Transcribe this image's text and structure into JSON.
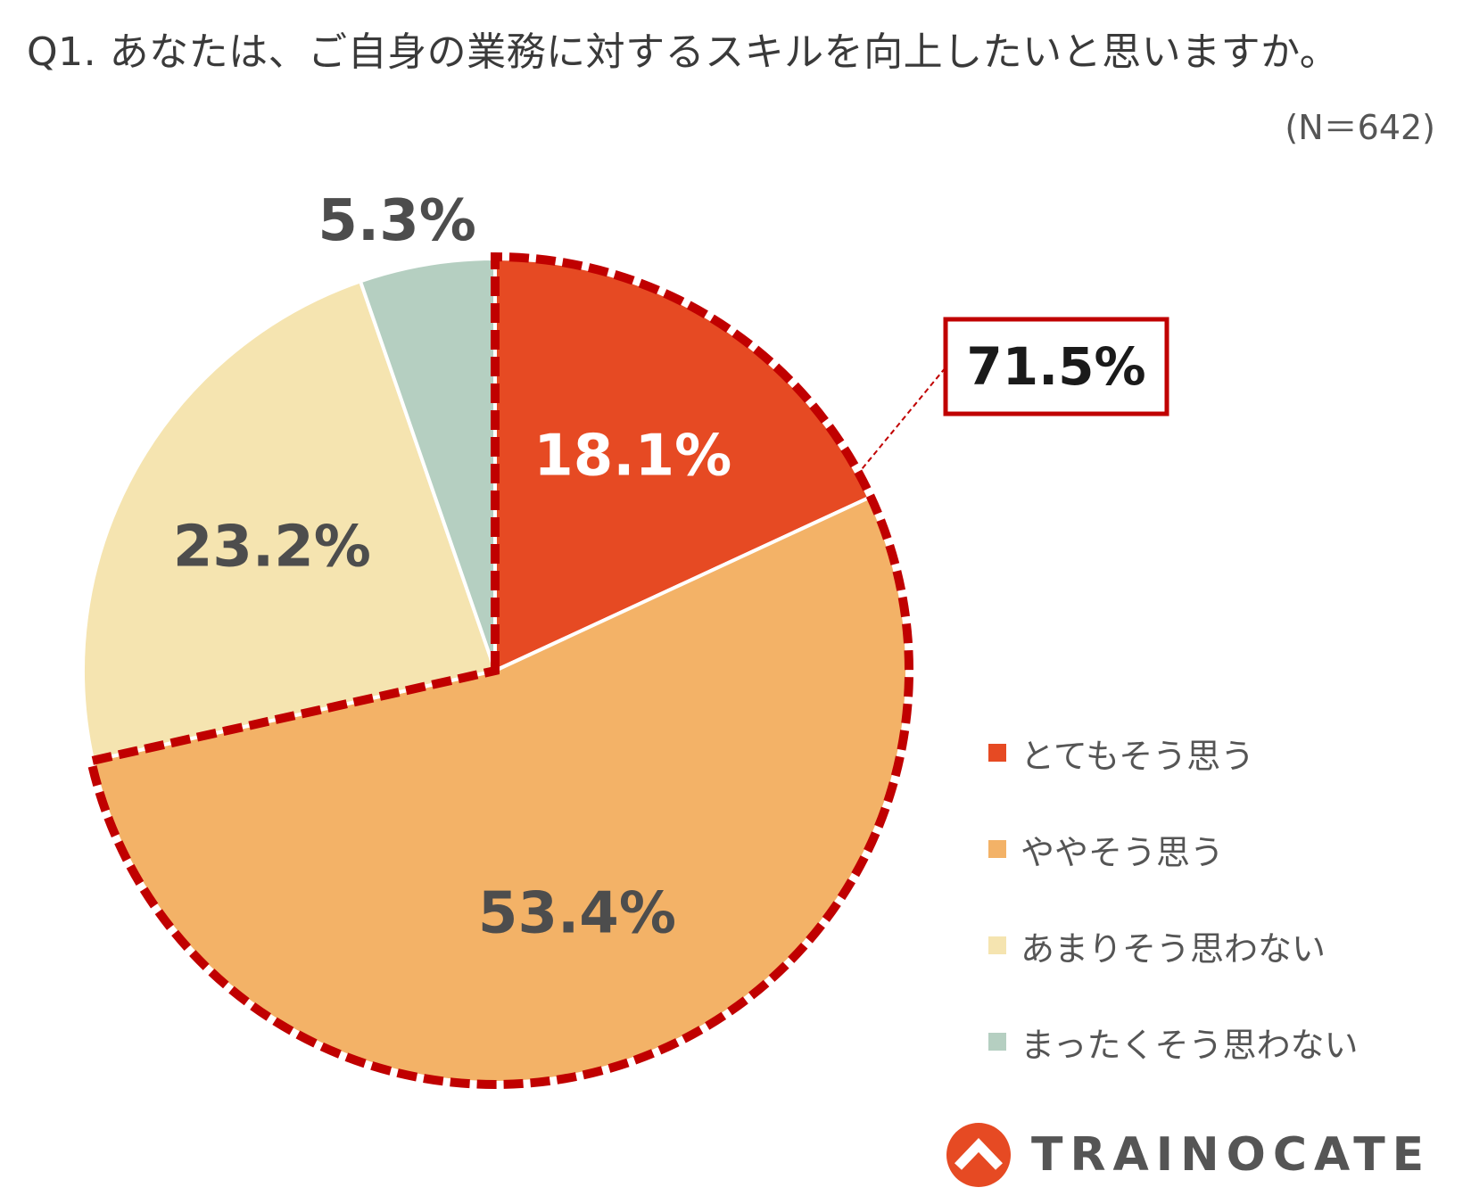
{
  "title": "Q1. あなたは、ご自身の業務に対するスキルを向上したいと思いますか。",
  "sample_size": "(N＝642)",
  "chart_data": {
    "type": "pie",
    "title": "Q1. あなたは、ご自身の業務に対するスキルを向上したいと思いますか。",
    "categories": [
      "とてもそう思う",
      "ややそう思う",
      "あまりそう思わない",
      "まったくそう思わない"
    ],
    "values": [
      18.1,
      53.4,
      23.2,
      5.3
    ],
    "labels": [
      "18.1%",
      "53.4%",
      "23.2%",
      "5.3%"
    ],
    "colors": [
      "#E64A23",
      "#F3B267",
      "#F5E4B0",
      "#B5CFC1"
    ],
    "label_colors": [
      "#ffffff",
      "#4d4d4d",
      "#4d4d4d",
      "#4d4d4d"
    ],
    "legend_position": "right",
    "highlight": {
      "label": "71.5%",
      "slices": [
        0,
        1
      ],
      "color": "#C00000"
    }
  },
  "legend": {
    "items": [
      {
        "label": "とてもそう思う",
        "color": "#E64A23"
      },
      {
        "label": "ややそう思う",
        "color": "#F3B267"
      },
      {
        "label": "あまりそう思わない",
        "color": "#F5E4B0"
      },
      {
        "label": "まったくそう思わない",
        "color": "#B5CFC1"
      }
    ]
  },
  "logo": {
    "text": "TRAINOCATE",
    "icon": "trainocate-logo-icon",
    "color": "#E64A23"
  }
}
